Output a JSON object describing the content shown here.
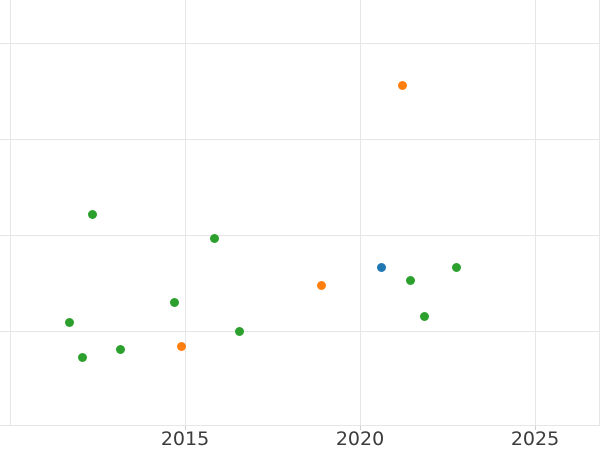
{
  "chart_data": {
    "type": "scatter",
    "title": "",
    "xlabel": "",
    "ylabel": "",
    "grid": true,
    "legend": false,
    "x_axis": {
      "tick_labels": [
        "2015",
        "2020",
        "2025"
      ],
      "tick_values": [
        2015,
        2020,
        2025
      ],
      "gridline_values": [
        2010,
        2015,
        2020,
        2025
      ],
      "visible_range": [
        2009.7,
        2026.9
      ]
    },
    "y_axis": {
      "tick_labels": [],
      "unit": "gridline-intervals (y tick labels cropped out of view)",
      "gridline_values": [
        0,
        1,
        2,
        3
      ],
      "visible_range": [
        -0.97,
        3.45
      ]
    },
    "series": [
      {
        "name": "green-series",
        "color": "#2ca02c",
        "points": [
          [
            2012.37,
            1.22
          ],
          [
            2015.83,
            0.97
          ],
          [
            2011.7,
            0.1
          ],
          [
            2014.71,
            0.3
          ],
          [
            2016.55,
            0.0
          ],
          [
            2012.08,
            -0.27
          ],
          [
            2013.16,
            -0.19
          ],
          [
            2021.43,
            0.53
          ],
          [
            2022.75,
            0.67
          ],
          [
            2021.83,
            0.16
          ]
        ]
      },
      {
        "name": "orange-series",
        "color": "#ff7f0e",
        "points": [
          [
            2014.9,
            -0.15
          ],
          [
            2018.91,
            0.48
          ],
          [
            2021.21,
            2.57
          ]
        ]
      },
      {
        "name": "blue-series",
        "color": "#1f77b4",
        "points": [
          [
            2020.62,
            0.67
          ]
        ]
      }
    ]
  },
  "styles": {
    "background": "#ffffff",
    "gridline_color": "#e6e6e6",
    "tick_label_color": "#3c3c3c"
  }
}
